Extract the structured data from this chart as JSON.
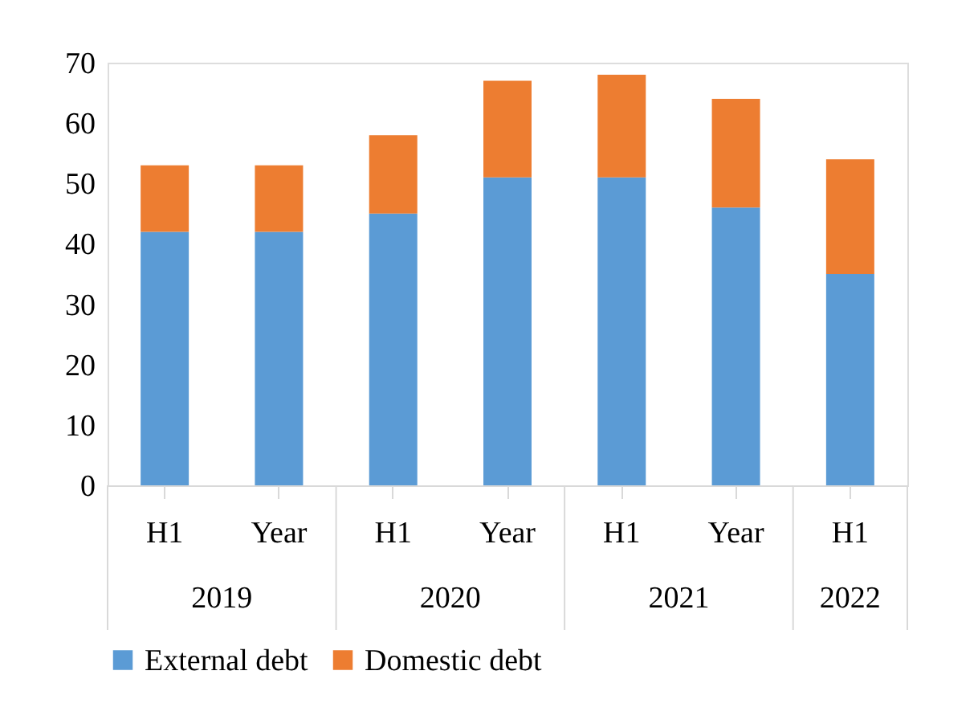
{
  "chart_data": {
    "type": "bar",
    "stacked": true,
    "categories": [
      "H1",
      "Year",
      "H1",
      "Year",
      "H1",
      "Year",
      "H1"
    ],
    "annotations": [
      "2019",
      "2020",
      "2021",
      "2022"
    ],
    "series": [
      {
        "name": "External debt",
        "color": "#5b9bd5",
        "values": [
          42,
          42,
          45,
          51,
          51,
          46,
          35
        ]
      },
      {
        "name": "Domestic debt",
        "color": "#ed7d31",
        "values": [
          11,
          11,
          13,
          16,
          17,
          18,
          19
        ]
      }
    ],
    "ylim": [
      0,
      70
    ],
    "yticks": [
      0,
      10,
      20,
      30,
      40,
      50,
      60,
      70
    ],
    "grid": false,
    "legend": "bottom"
  }
}
